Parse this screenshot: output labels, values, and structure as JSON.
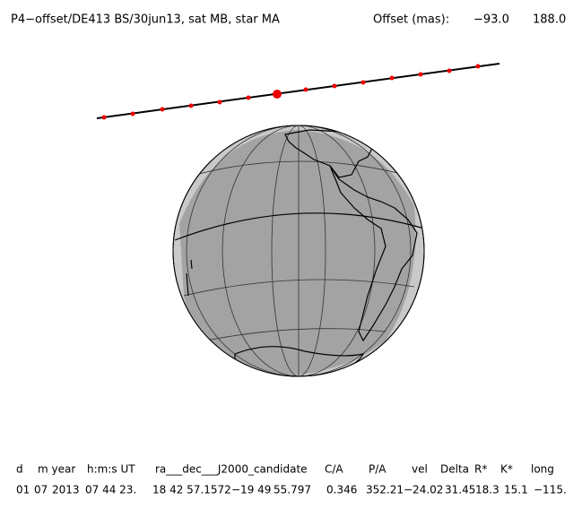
{
  "header": {
    "title": "P4−offset/DE413 BS/30jun13, sat MB, star MA",
    "offset_label": "Offset (mas):",
    "offset_values": [
      "−93.0",
      "188.0"
    ]
  },
  "table": {
    "columns": [
      "d",
      "m year",
      "h:m:s UT",
      "ra___dec___J2000_candidate",
      "C/A",
      "P/A",
      "vel",
      "Delta",
      "R*",
      "K*",
      "long"
    ],
    "rows": [
      [
        "01",
        "07",
        "2013",
        "07 44 23.",
        "18 42 57.1572",
        "−19 49",
        "55.797",
        "0.346",
        "352.21",
        "−24.02",
        "31.45",
        "18.3",
        "15.1",
        "−115."
      ]
    ]
  }
}
